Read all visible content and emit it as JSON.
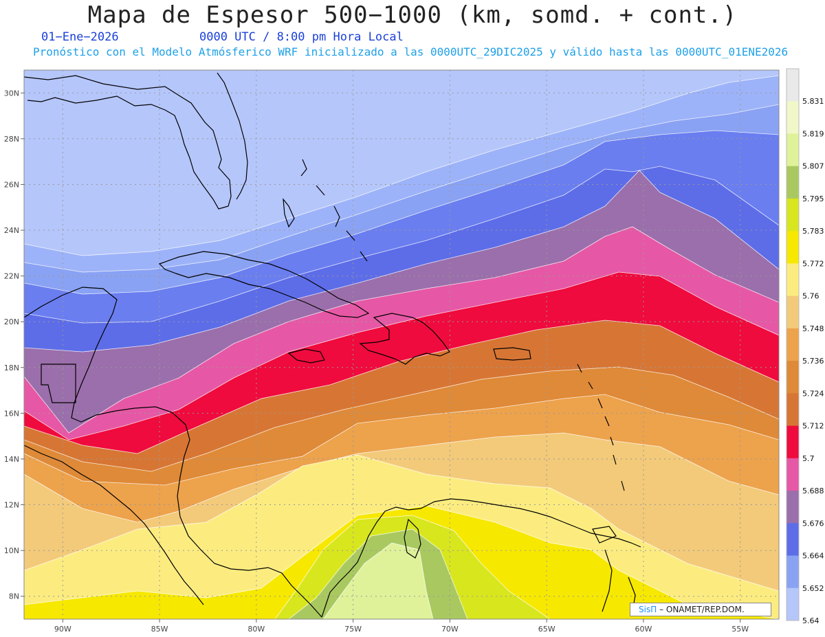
{
  "title": "Mapa de Espesor 500−1000 (km, somd. + cont.)",
  "date": "01−Ene−2026",
  "time": "0000 UTC / 8:00 pm Hora Local",
  "description": "Pronóstico con el Modelo Atmósferico WRF inicializado a las 0000UTC_29DIC2025 y válido hasta las  0000UTC_01ENE2026",
  "credit": {
    "brand": "SisΠ",
    "rest": "– ONAMET/REP.DOM."
  },
  "axes": {
    "lon_labels": [
      "90W",
      "85W",
      "80W",
      "75W",
      "70W",
      "65W",
      "60W",
      "55W"
    ],
    "lat_labels": [
      "30N",
      "28N",
      "26N",
      "24N",
      "22N",
      "20N",
      "18N",
      "16N",
      "14N",
      "12N",
      "10N",
      "8N"
    ]
  },
  "colorbar": {
    "labels": [
      "5.831",
      "5.819",
      "5.807",
      "5.795",
      "5.783",
      "5.772",
      "5.76",
      "5.748",
      "5.736",
      "5.724",
      "5.712",
      "5.7",
      "5.688",
      "5.676",
      "5.664",
      "5.652",
      "5.64"
    ],
    "colors_top_to_bottom": [
      "#e9e9e9",
      "#f1f7c8",
      "#dff29a",
      "#a9c960",
      "#d8e61e",
      "#f7e800",
      "#fcec80",
      "#f3ca7a",
      "#eda24c",
      "#df8a38",
      "#d77634",
      "#ef0b3d",
      "#e658a5",
      "#9b6fab",
      "#5d6de8",
      "#8aa2f3",
      "#b5c6fb"
    ]
  },
  "bands_colors": [
    "#b5c6fb",
    "#9db3f9",
    "#8aa2f3",
    "#6a7ef0",
    "#5d6de8",
    "#9b6fab",
    "#e658a5",
    "#ef0b3d",
    "#d77634",
    "#df8a38",
    "#eda24c",
    "#f3ca7a",
    "#fcec80",
    "#f7e800",
    "#d8e61e",
    "#a9c960",
    "#dff29a",
    "#f1f7c8"
  ]
}
